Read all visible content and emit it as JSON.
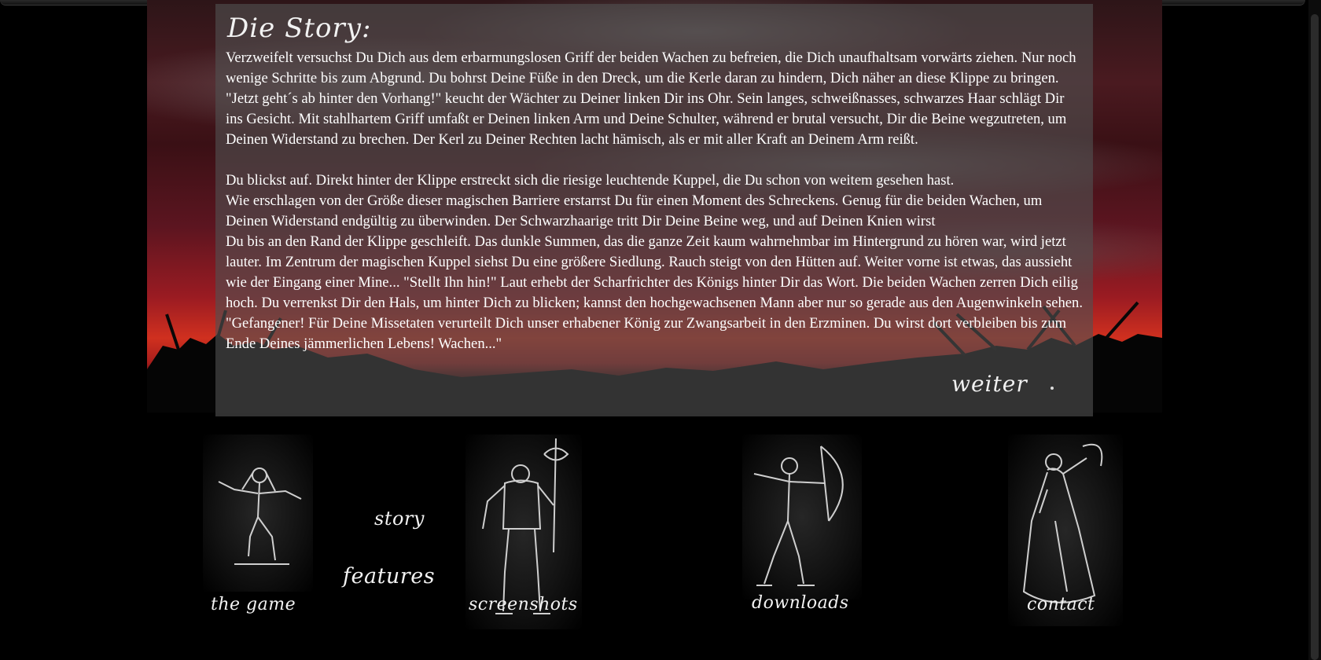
{
  "story": {
    "title": "Die Story:",
    "paragraph1": "Verzweifelt versuchst Du Dich aus dem erbarmungslosen Griff der beiden Wachen zu befreien, die Dich unaufhaltsam vorwärts ziehen. Nur noch wenige Schritte bis zum Abgrund. Du bohrst Deine Füße in den Dreck, um die Kerle daran zu hindern, Dich näher an diese Klippe zu bringen. \"Jetzt geht´s ab hinter den Vorhang!\" keucht der Wächter zu Deiner linken Dir ins Ohr. Sein langes, schweißnasses, schwarzes Haar schlägt Dir ins Gesicht. Mit stahlhartem Griff umfaßt er Deinen linken Arm und Deine Schulter, während er brutal versucht, Dir die Beine wegzutreten, um Deinen Widerstand zu brechen. Der Kerl zu Deiner Rechten lacht hämisch, als er mit aller Kraft an Deinem Arm reißt.",
    "paragraph2_line1": "Du blickst auf. Direkt hinter der Klippe erstreckt sich die riesige leuchtende Kuppel, die Du schon von weitem gesehen hast.",
    "paragraph2_line2": "Wie erschlagen von der Größe dieser magischen Barriere erstarrst Du für einen Moment des Schreckens. Genug für die beiden Wachen, um Deinen Widerstand endgültig zu überwinden. Der Schwarzhaarige tritt Dir Deine Beine weg, und auf Deinen Knien wirst",
    "paragraph2_line3": "Du bis an den Rand der Klippe geschleift. Das dunkle Summen, das die ganze Zeit kaum wahrnehmbar im Hintergrund zu hören war, wird jetzt lauter. Im Zentrum der magischen Kuppel siehst Du eine größere Siedlung. Rauch steigt von den Hütten auf. Weiter vorne ist etwas, das aussieht wie der Eingang einer Mine... \"Stellt Ihn hin!\" Laut erhebt der Scharfrichter des Königs hinter Dir das Wort. Die beiden Wachen zerren Dich eilig hoch. Du verrenkst Dir den Hals, um hinter Dich zu blicken; kannst den hochgewachsenen Mann aber nur so gerade aus den Augenwinkeln sehen. \"Gefangener! Für Deine Missetaten verurteilt Dich unser erhabener König zur Zwangsarbeit in den Erzminen. Du wirst dort verbleiben bis zum Ende Deines jämmerlichen Lebens! Wachen...\"",
    "next_link": "weiter"
  },
  "nav": {
    "the_game": "the game",
    "story": "story",
    "features": "features",
    "screenshots": "screenshots",
    "downloads": "downloads",
    "contact": "contact"
  },
  "icons": {
    "fig1": "crouching-warrior-figure",
    "fig2": "axe-warrior-figure",
    "fig3": "archer-figure",
    "fig4": "robed-mage-figure"
  },
  "colors": {
    "background": "#000000",
    "sky_red": "#d0301f",
    "panel_overlay": "rgba(80,80,80,0.62)",
    "text": "#ffffff"
  }
}
